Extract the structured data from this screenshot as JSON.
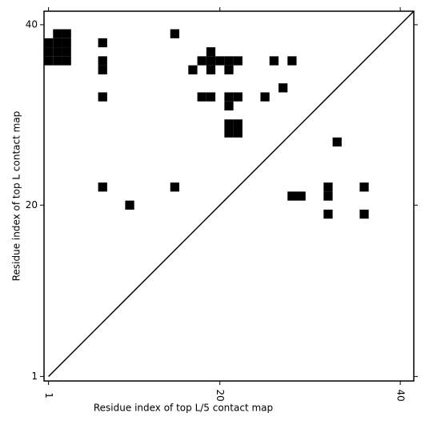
{
  "chart_data": {
    "type": "heatmap",
    "xlabel": "Residue index of top L/5 contact map",
    "ylabel": "Residue index of top L contact map",
    "x": [
      1,
      1,
      1,
      2,
      2,
      2,
      2,
      3,
      3,
      3,
      3,
      7,
      15,
      7,
      7,
      19,
      18,
      19,
      20,
      21,
      22,
      17,
      19,
      21,
      26,
      28,
      27,
      7,
      18,
      19,
      21,
      22,
      21,
      25,
      21,
      22,
      21,
      22,
      33,
      7,
      15,
      10,
      28,
      29,
      32,
      32,
      36,
      32,
      36
    ],
    "y": [
      36,
      37,
      38,
      36,
      37,
      38,
      39,
      36,
      37,
      38,
      39,
      38,
      39,
      36,
      35,
      37,
      36,
      36,
      36,
      36,
      36,
      35,
      35,
      35,
      36,
      36,
      33,
      32,
      32,
      32,
      32,
      32,
      31,
      32,
      29,
      29,
      28,
      28,
      27,
      22,
      22,
      20,
      21,
      21,
      22,
      21,
      22,
      19,
      19
    ],
    "color": "#000000",
    "xlim": [
      0.5,
      41.5
    ],
    "ylim": [
      0.5,
      41.5
    ],
    "xticks": [
      1,
      20,
      40
    ],
    "yticks": [
      1,
      20,
      40
    ]
  }
}
